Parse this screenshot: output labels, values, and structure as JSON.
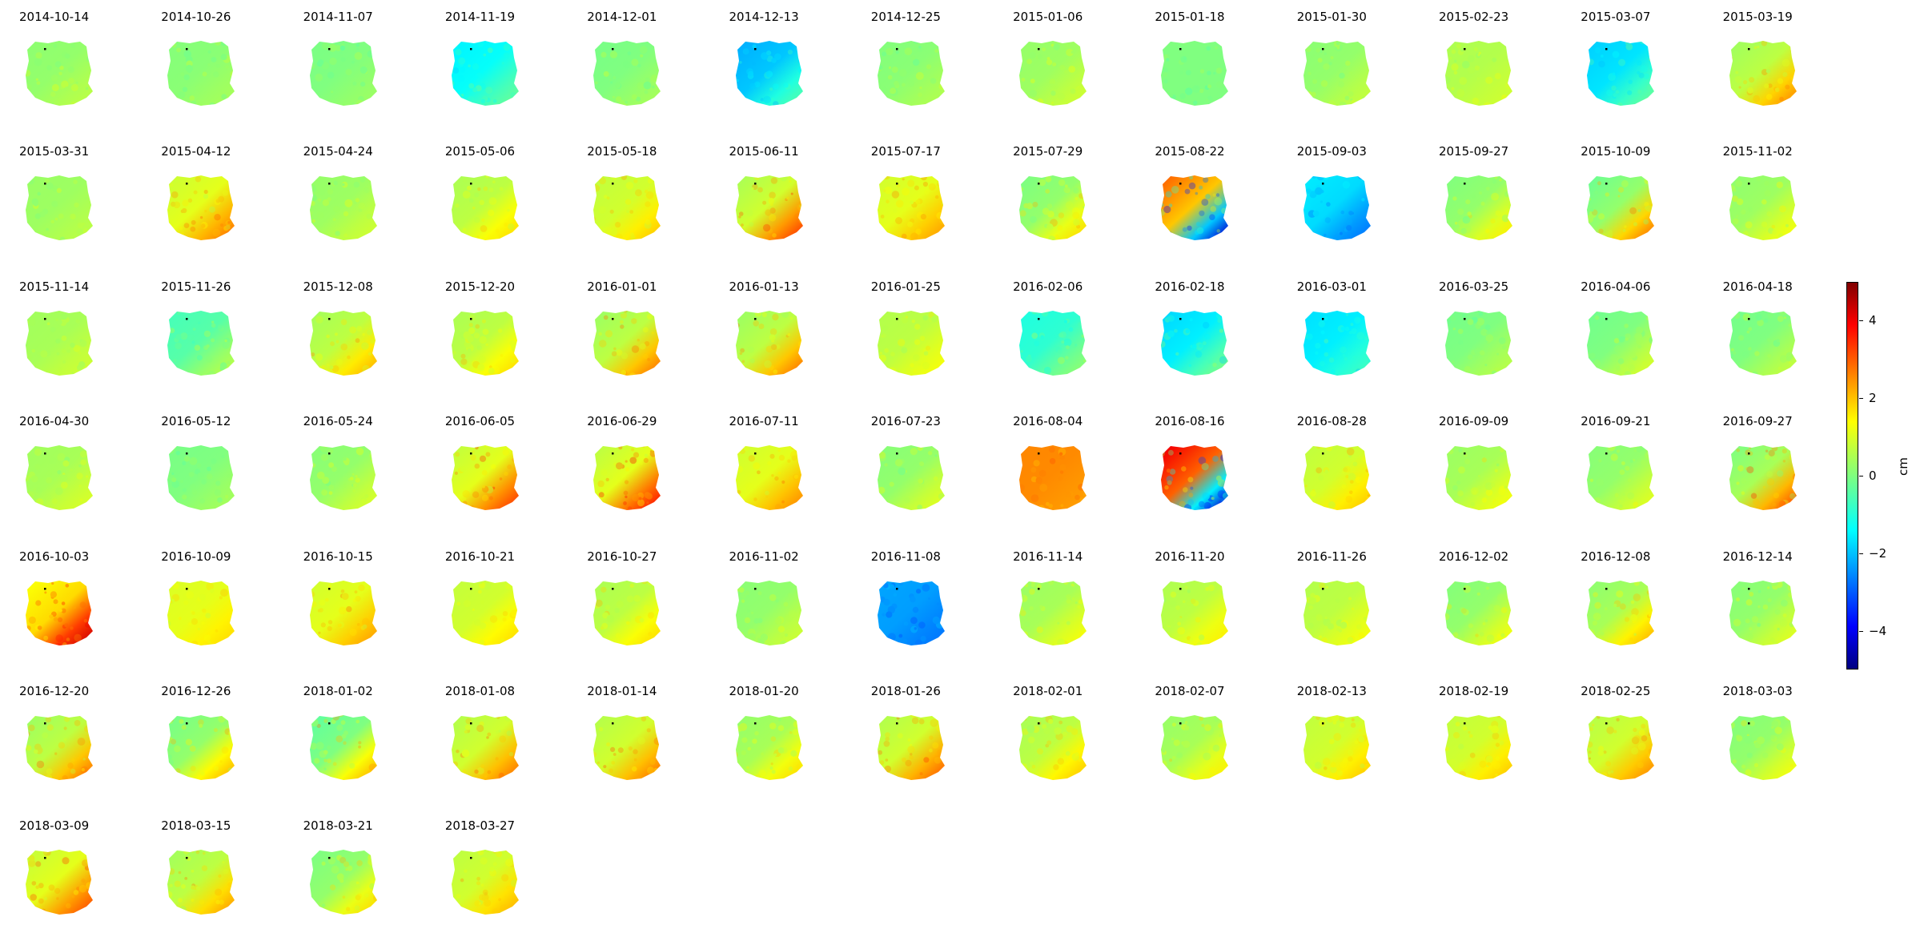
{
  "chart_data": {
    "type": "heatmap",
    "description_note": "",
    "panel_titles": [
      "2014-10-14",
      "2014-10-26",
      "2014-11-07",
      "2014-11-19",
      "2014-12-01",
      "2014-12-13",
      "2014-12-25",
      "2015-01-06",
      "2015-01-18",
      "2015-01-30",
      "2015-02-23",
      "2015-03-07",
      "2015-03-19",
      "2015-03-31",
      "2015-04-12",
      "2015-04-24",
      "2015-05-06",
      "2015-05-18",
      "2015-06-11",
      "2015-07-17",
      "2015-07-29",
      "2015-08-22",
      "2015-09-03",
      "2015-09-27",
      "2015-10-09",
      "2015-11-02",
      "2015-11-14",
      "2015-11-26",
      "2015-12-08",
      "2015-12-20",
      "2016-01-01",
      "2016-01-13",
      "2016-01-25",
      "2016-02-06",
      "2016-02-18",
      "2016-03-01",
      "2016-03-25",
      "2016-04-06",
      "2016-04-18",
      "2016-04-30",
      "2016-05-12",
      "2016-05-24",
      "2016-06-05",
      "2016-06-29",
      "2016-07-11",
      "2016-07-23",
      "2016-08-04",
      "2016-08-16",
      "2016-08-28",
      "2016-09-09",
      "2016-09-21",
      "2016-09-27",
      "2016-10-03",
      "2016-10-09",
      "2016-10-15",
      "2016-10-21",
      "2016-10-27",
      "2016-11-02",
      "2016-11-08",
      "2016-11-14",
      "2016-11-20",
      "2016-11-26",
      "2016-12-02",
      "2016-12-08",
      "2016-12-14",
      "2016-12-20",
      "2016-12-26",
      "2018-01-02",
      "2018-01-08",
      "2018-01-14",
      "2018-01-20",
      "2018-01-26",
      "2018-02-01",
      "2018-02-07",
      "2018-02-13",
      "2018-02-19",
      "2018-02-25",
      "2018-03-03",
      "2018-03-09",
      "2018-03-15",
      "2018-03-21",
      "2018-03-27"
    ],
    "panel_patterns": [
      [
        0.2,
        0.6
      ],
      [
        0.1,
        0.4
      ],
      [
        0.0,
        0.3
      ],
      [
        -1.2,
        -0.2
      ],
      [
        0.0,
        0.4
      ],
      [
        -1.8,
        -0.4
      ],
      [
        0.1,
        0.5
      ],
      [
        0.3,
        0.8
      ],
      [
        0.0,
        0.0
      ],
      [
        0.2,
        0.7
      ],
      [
        0.5,
        0.8
      ],
      [
        -1.5,
        -0.2
      ],
      [
        0.6,
        2.4
      ],
      [
        0.3,
        0.6
      ],
      [
        1.0,
        2.6
      ],
      [
        0.3,
        0.8
      ],
      [
        0.6,
        1.6
      ],
      [
        0.8,
        1.8
      ],
      [
        0.8,
        3.2
      ],
      [
        1.0,
        2.2
      ],
      [
        0.2,
        1.6
      ],
      [
        1.8,
        -4.2
      ],
      [
        -1.6,
        -2.6
      ],
      [
        0.2,
        1.4
      ],
      [
        0.2,
        2.6
      ],
      [
        0.3,
        1.2
      ],
      [
        0.4,
        0.8
      ],
      [
        -0.4,
        0.6
      ],
      [
        0.6,
        2.0
      ],
      [
        0.6,
        1.6
      ],
      [
        0.6,
        2.6
      ],
      [
        0.6,
        2.6
      ],
      [
        0.6,
        1.2
      ],
      [
        -0.8,
        0.2
      ],
      [
        -1.4,
        0.0
      ],
      [
        -1.4,
        -0.6
      ],
      [
        0.0,
        0.6
      ],
      [
        0.0,
        0.9
      ],
      [
        0.0,
        0.7
      ],
      [
        0.4,
        0.9
      ],
      [
        0.0,
        0.4
      ],
      [
        0.2,
        0.9
      ],
      [
        1.0,
        3.2
      ],
      [
        1.0,
        3.6
      ],
      [
        1.0,
        2.4
      ],
      [
        0.2,
        1.0
      ],
      [
        2.4,
        2.2
      ],
      [
        2.8,
        -4.2
      ],
      [
        0.8,
        1.8
      ],
      [
        0.4,
        1.2
      ],
      [
        0.2,
        1.0
      ],
      [
        0.4,
        3.0
      ],
      [
        1.6,
        4.2
      ],
      [
        1.0,
        1.6
      ],
      [
        1.0,
        2.2
      ],
      [
        0.8,
        1.6
      ],
      [
        0.6,
        1.6
      ],
      [
        0.2,
        0.8
      ],
      [
        -2.2,
        -2.6
      ],
      [
        0.4,
        1.2
      ],
      [
        0.6,
        1.4
      ],
      [
        0.6,
        1.2
      ],
      [
        0.2,
        1.2
      ],
      [
        0.4,
        2.0
      ],
      [
        0.2,
        1.0
      ],
      [
        0.6,
        2.6
      ],
      [
        0.2,
        2.0
      ],
      [
        0.0,
        2.0
      ],
      [
        0.8,
        2.6
      ],
      [
        0.8,
        2.6
      ],
      [
        0.4,
        1.6
      ],
      [
        0.8,
        2.8
      ],
      [
        0.6,
        1.8
      ],
      [
        0.4,
        1.4
      ],
      [
        0.8,
        1.8
      ],
      [
        0.8,
        1.8
      ],
      [
        0.8,
        2.4
      ],
      [
        0.2,
        1.2
      ],
      [
        1.0,
        3.0
      ],
      [
        0.6,
        2.2
      ],
      [
        0.2,
        1.6
      ],
      [
        0.8,
        2.0
      ]
    ],
    "colorbar": {
      "label": "cm",
      "colormap": "jet",
      "vmin": -5,
      "vmax": 5,
      "ticks": [
        4,
        2,
        0,
        -2,
        -4
      ],
      "tick_labels": [
        "4",
        "2",
        "0",
        "−2",
        "−4"
      ]
    }
  }
}
